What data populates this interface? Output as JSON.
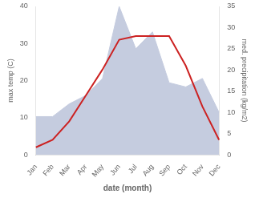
{
  "chart_data": {
    "type": "line",
    "xlabel": "date (month)",
    "ylabel": "max temp (C)",
    "y2label": "med. precipitation (kg/m2)",
    "categories": [
      "Jan",
      "Feb",
      "Mar",
      "Apr",
      "May",
      "Jun",
      "Jul",
      "Aug",
      "Sep",
      "Oct",
      "Nov",
      "Dec"
    ],
    "series": [
      {
        "type": "area",
        "axis": "y2",
        "color": "#c5ccdf",
        "values": [
          9,
          9,
          12,
          14,
          18,
          35,
          25,
          29,
          17,
          16,
          18,
          10
        ]
      },
      {
        "type": "line",
        "color": "#cc2222",
        "values": [
          2,
          4,
          9,
          16,
          23,
          31,
          32,
          32,
          32,
          24,
          13,
          4
        ]
      }
    ],
    "ylim": [
      0,
      40
    ],
    "yticks": [
      0,
      10,
      20,
      30,
      40
    ],
    "y2lim": [
      0,
      35
    ],
    "y2ticks": [
      0,
      5,
      10,
      15,
      20,
      25,
      30,
      35
    ],
    "grid": false
  }
}
